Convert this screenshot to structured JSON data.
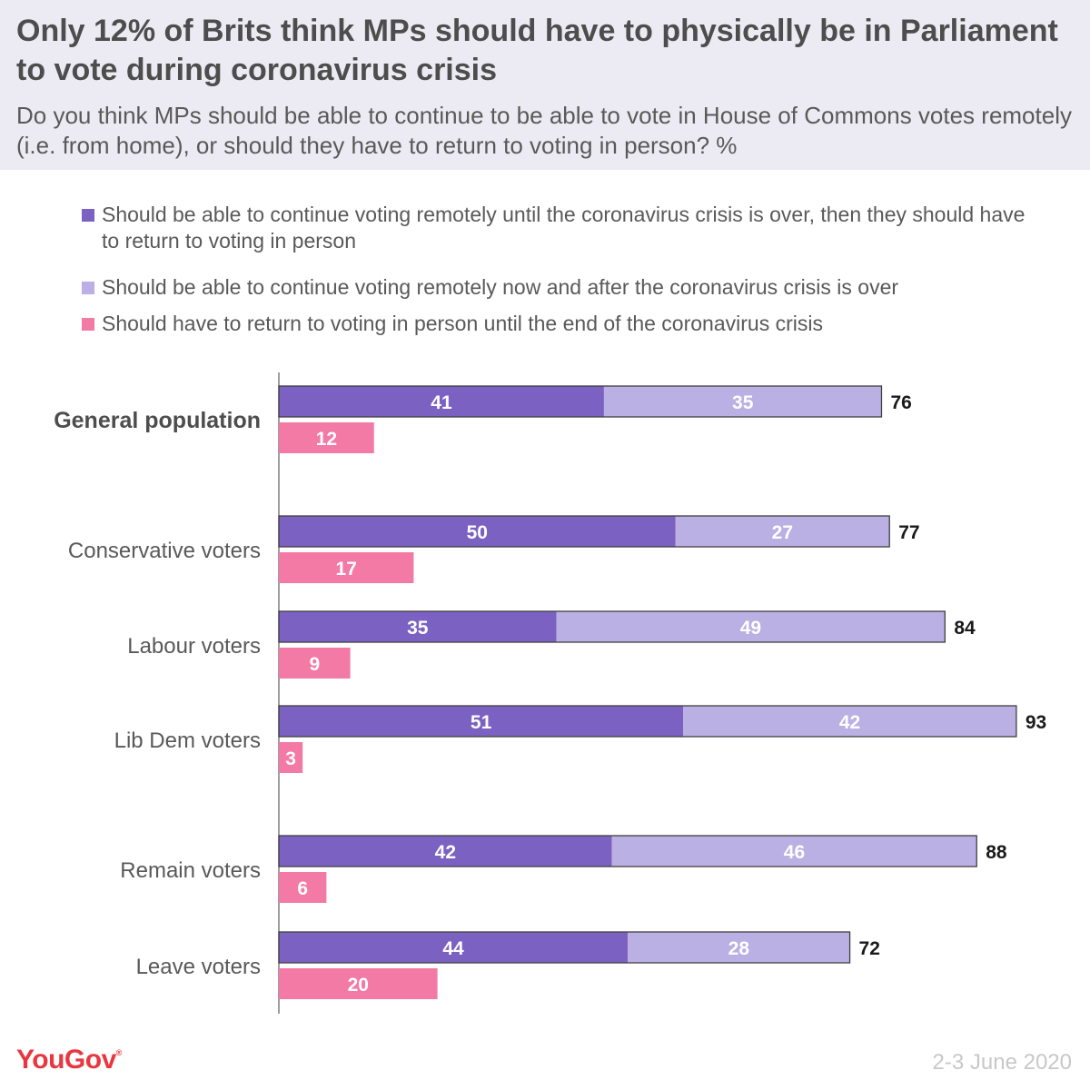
{
  "title": "Only 12% of Brits think MPs should have to physically be in Parliament to vote during coronavirus crisis",
  "subtitle": "Do you think MPs should be able to continue to be able to vote in House of Commons votes remotely (i.e. from home), or should they have to return to voting in person? %",
  "legend": [
    {
      "label": "Should be able to continue voting remotely until the coronavirus crisis is over, then they should have to return to voting in person",
      "color": "#7b61c1"
    },
    {
      "label": "Should be able to continue voting remotely now and after the coronavirus crisis is over",
      "color": "#bbb0e3"
    },
    {
      "label": "Should have to return to voting in person until the end of the coronavirus crisis",
      "color": "#f27aa5"
    }
  ],
  "chart_data": {
    "type": "bar",
    "orientation": "horizontal",
    "categories": [
      "General population",
      "Conservative voters",
      "Labour voters",
      "Lib Dem voters",
      "Remain voters",
      "Leave voters"
    ],
    "series": [
      {
        "name": "Should be able to continue voting remotely until the coronavirus crisis is over, then they should have to return to voting in person",
        "stack": "remote",
        "color": "#7b61c1",
        "values": [
          41,
          50,
          35,
          51,
          42,
          44
        ]
      },
      {
        "name": "Should be able to continue voting remotely now and after the coronavirus crisis is over",
        "stack": "remote",
        "color": "#bbb0e3",
        "values": [
          35,
          27,
          49,
          42,
          46,
          28
        ]
      },
      {
        "name": "Should have to return to voting in person until the end of the coronavirus crisis",
        "stack": "in-person",
        "color": "#f27aa5",
        "values": [
          12,
          17,
          9,
          3,
          6,
          20
        ]
      }
    ],
    "totals": [
      76,
      77,
      84,
      93,
      88,
      72
    ],
    "bold_categories": [
      "General population"
    ],
    "xlim": [
      0,
      100
    ],
    "grid": false
  },
  "footer": {
    "brand": "YouGov",
    "date": "2-3 June 2020"
  }
}
